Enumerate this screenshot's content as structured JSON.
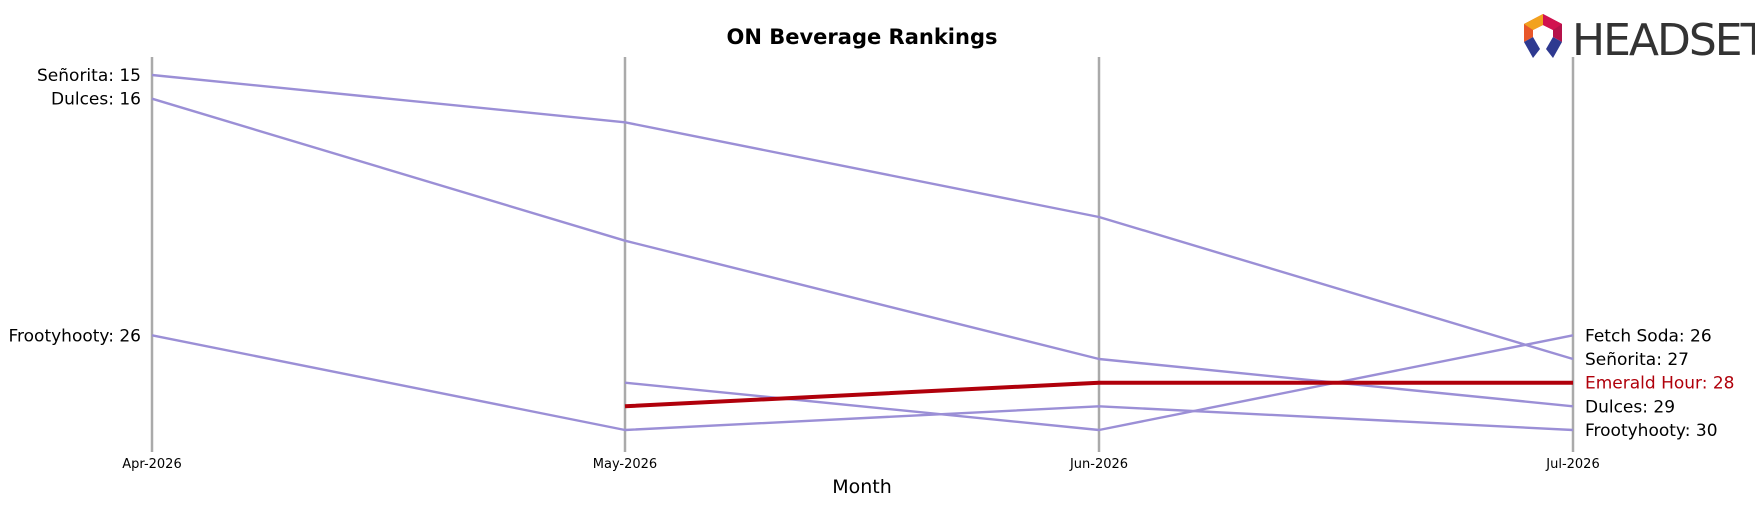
{
  "logo": {
    "text": "HEADSET"
  },
  "chart_data": {
    "type": "line",
    "title": "ON Beverage Rankings",
    "xlabel": "Month",
    "ylabel": "",
    "categories": [
      "Apr-2026",
      "May-2026",
      "Jun-2026",
      "Jul-2026"
    ],
    "y_inverted": true,
    "grid": false,
    "series": [
      {
        "name": "Señorita",
        "values": [
          15,
          17,
          21,
          27
        ],
        "color": "#9b8fd6",
        "highlight": false
      },
      {
        "name": "Dulces",
        "values": [
          16,
          22,
          27,
          29
        ],
        "color": "#9b8fd6",
        "highlight": false
      },
      {
        "name": "Frootyhooty",
        "values": [
          26,
          30,
          29,
          30
        ],
        "color": "#9b8fd6",
        "highlight": false
      },
      {
        "name": "Fetch Soda",
        "values": [
          null,
          28,
          30,
          26
        ],
        "color": "#9b8fd6",
        "highlight": false
      },
      {
        "name": "Emerald Hour",
        "values": [
          null,
          29,
          28,
          28
        ],
        "color": "#b0000b",
        "highlight": true
      }
    ],
    "left_labels": [
      {
        "text": "Señorita: 15",
        "series": "Señorita"
      },
      {
        "text": "Dulces: 16",
        "series": "Dulces"
      },
      {
        "text": "Frootyhooty: 26",
        "series": "Frootyhooty"
      }
    ],
    "right_labels": [
      {
        "text": "Fetch Soda: 26",
        "series": "Fetch Soda"
      },
      {
        "text": "Señorita: 27",
        "series": "Señorita"
      },
      {
        "text": "Emerald Hour: 28",
        "series": "Emerald Hour"
      },
      {
        "text": "Dulces: 29",
        "series": "Dulces"
      },
      {
        "text": "Frootyhooty: 30",
        "series": "Frootyhooty"
      }
    ]
  }
}
